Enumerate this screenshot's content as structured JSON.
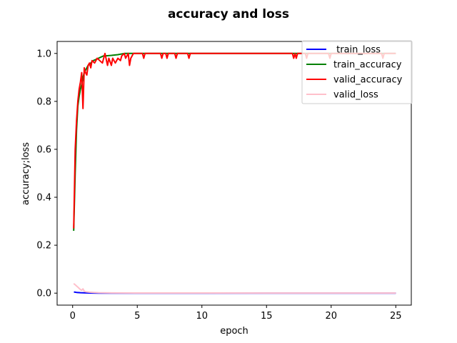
{
  "chart_data": {
    "type": "line",
    "title": "accuracy and loss",
    "xlabel": "epoch",
    "ylabel": "accuracy;loss",
    "xlim": [
      -1.2,
      26.2
    ],
    "ylim": [
      -0.05,
      1.05
    ],
    "x_ticks": [
      0,
      5,
      10,
      15,
      20,
      25
    ],
    "x_tick_labels": [
      "0",
      "5",
      "10",
      "15",
      "20",
      "25"
    ],
    "y_ticks": [
      0.0,
      0.2,
      0.4,
      0.6,
      0.8,
      1.0
    ],
    "y_tick_labels": [
      "0.0",
      "0.2",
      "0.4",
      "0.6",
      "0.8",
      "1.0"
    ],
    "grid": false,
    "legend_position": "top-right",
    "series": [
      {
        "name": " train_loss",
        "color": "#0000ff",
        "points": [
          [
            0.1,
            0.005
          ],
          [
            0.3,
            0.003
          ],
          [
            0.6,
            0.002
          ],
          [
            1.0,
            0.001
          ],
          [
            1.5,
            0.0005
          ],
          [
            2.0,
            0.0002
          ],
          [
            5,
            0.0001
          ],
          [
            10,
            0.0001
          ],
          [
            15,
            0.0001
          ],
          [
            20,
            0.0001
          ],
          [
            25,
            0.0001
          ]
        ]
      },
      {
        "name": "train_accuracy",
        "color": "#008000",
        "points": [
          [
            0.08,
            0.26
          ],
          [
            0.2,
            0.5
          ],
          [
            0.3,
            0.68
          ],
          [
            0.4,
            0.78
          ],
          [
            0.5,
            0.82
          ],
          [
            0.6,
            0.85
          ],
          [
            0.7,
            0.87
          ],
          [
            0.8,
            0.9
          ],
          [
            0.9,
            0.92
          ],
          [
            1.0,
            0.93
          ],
          [
            1.2,
            0.95
          ],
          [
            1.4,
            0.96
          ],
          [
            1.6,
            0.97
          ],
          [
            1.8,
            0.975
          ],
          [
            2.0,
            0.98
          ],
          [
            2.2,
            0.985
          ],
          [
            2.4,
            0.99
          ],
          [
            2.6,
            0.99
          ],
          [
            3.0,
            0.992
          ],
          [
            3.5,
            0.995
          ],
          [
            4.0,
            1.0
          ],
          [
            5,
            1.0
          ],
          [
            10,
            1.0
          ],
          [
            15,
            1.0
          ],
          [
            20,
            1.0
          ],
          [
            25,
            1.0
          ]
        ]
      },
      {
        "name": "valid_accuracy",
        "color": "#ff0000",
        "points": [
          [
            0.08,
            0.27
          ],
          [
            0.2,
            0.6
          ],
          [
            0.3,
            0.72
          ],
          [
            0.4,
            0.8
          ],
          [
            0.5,
            0.85
          ],
          [
            0.6,
            0.88
          ],
          [
            0.7,
            0.92
          ],
          [
            0.8,
            0.77
          ],
          [
            0.9,
            0.94
          ],
          [
            1.0,
            0.92
          ],
          [
            1.1,
            0.91
          ],
          [
            1.2,
            0.95
          ],
          [
            1.3,
            0.96
          ],
          [
            1.4,
            0.94
          ],
          [
            1.5,
            0.97
          ],
          [
            1.7,
            0.96
          ],
          [
            1.9,
            0.98
          ],
          [
            2.1,
            0.97
          ],
          [
            2.3,
            0.96
          ],
          [
            2.5,
            1.0
          ],
          [
            2.7,
            0.95
          ],
          [
            2.8,
            0.98
          ],
          [
            3.0,
            0.95
          ],
          [
            3.1,
            0.98
          ],
          [
            3.3,
            0.96
          ],
          [
            3.5,
            0.98
          ],
          [
            3.7,
            0.97
          ],
          [
            3.8,
            0.99
          ],
          [
            4.0,
            1.0
          ],
          [
            4.1,
            0.98
          ],
          [
            4.3,
            1.0
          ],
          [
            4.4,
            0.95
          ],
          [
            4.5,
            0.98
          ],
          [
            4.7,
            1.0
          ],
          [
            5.0,
            1.0
          ],
          [
            5.4,
            1.0
          ],
          [
            5.5,
            0.98
          ],
          [
            5.6,
            1.0
          ],
          [
            6.8,
            1.0
          ],
          [
            6.9,
            0.98
          ],
          [
            7.0,
            1.0
          ],
          [
            7.2,
            1.0
          ],
          [
            7.3,
            0.98
          ],
          [
            7.4,
            1.0
          ],
          [
            7.9,
            1.0
          ],
          [
            8.0,
            0.98
          ],
          [
            8.1,
            1.0
          ],
          [
            8.9,
            1.0
          ],
          [
            9.0,
            0.98
          ],
          [
            9.1,
            1.0
          ],
          [
            17.0,
            1.0
          ],
          [
            17.1,
            0.98
          ],
          [
            17.2,
            1.0
          ],
          [
            17.3,
            0.98
          ],
          [
            17.4,
            1.0
          ],
          [
            18.0,
            1.0
          ],
          [
            18.1,
            0.98
          ],
          [
            18.2,
            1.0
          ],
          [
            19.8,
            1.0
          ],
          [
            19.9,
            0.98
          ],
          [
            20.0,
            1.0
          ],
          [
            23.9,
            1.0
          ],
          [
            24.0,
            0.98
          ],
          [
            24.1,
            1.0
          ],
          [
            25,
            1.0
          ]
        ]
      },
      {
        "name": "valid_loss",
        "color": "#ffc0cb",
        "points": [
          [
            0.08,
            0.04
          ],
          [
            0.2,
            0.035
          ],
          [
            0.3,
            0.03
          ],
          [
            0.4,
            0.025
          ],
          [
            0.5,
            0.02
          ],
          [
            0.6,
            0.015
          ],
          [
            0.7,
            0.012
          ],
          [
            0.8,
            0.018
          ],
          [
            0.9,
            0.008
          ],
          [
            1.0,
            0.006
          ],
          [
            1.3,
            0.004
          ],
          [
            1.6,
            0.003
          ],
          [
            2.0,
            0.002
          ],
          [
            3.0,
            0.001
          ],
          [
            5,
            0.0008
          ],
          [
            10,
            0.0006
          ],
          [
            15,
            0.0005
          ],
          [
            20,
            0.0005
          ],
          [
            25,
            0.0005
          ]
        ]
      }
    ],
    "extra_segments": [
      {
        "color": "#9966cc",
        "points": [
          [
            2.0,
            0.0
          ],
          [
            25,
            0.0
          ]
        ]
      }
    ]
  }
}
